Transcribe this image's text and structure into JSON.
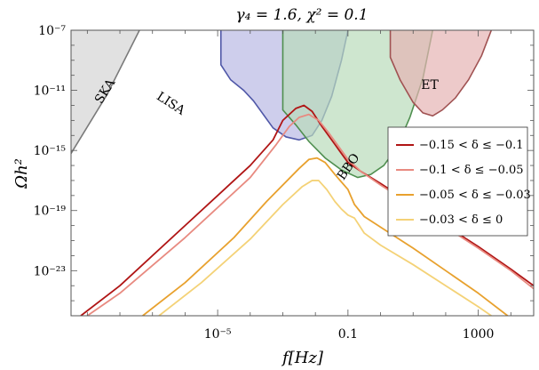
{
  "chart_data": {
    "type": "line",
    "title": "γ₄ = 1.6, χ² = 0.1",
    "xlabel": "f[Hz]",
    "ylabel": "Ωh²",
    "xscale": "log",
    "yscale": "log",
    "xlim_log10": [
      -9.5,
      4.7
    ],
    "ylim_log10": [
      -26,
      -7
    ],
    "x_ticks": [
      {
        "label": "10⁻⁵",
        "log10": -5
      },
      {
        "label": "0.1",
        "log10": -1
      },
      {
        "label": "1000",
        "log10": 3
      }
    ],
    "y_ticks": [
      {
        "label": "10⁻⁷",
        "log10": -7
      },
      {
        "label": "10⁻¹¹",
        "log10": -11
      },
      {
        "label": "10⁻¹⁵",
        "log10": -15
      },
      {
        "label": "10⁻¹⁹",
        "log10": -19
      },
      {
        "label": "10⁻²³",
        "log10": -23
      }
    ],
    "detectors": [
      {
        "label": "SKA",
        "fill": "#d4d4d4",
        "stroke": "#7a7a7a",
        "curve": [
          [
            -9.5,
            -15.2
          ],
          [
            -8.4,
            -11.3
          ],
          [
            -7.4,
            -7.0
          ]
        ]
      },
      {
        "label": "LISA",
        "fill": "#b9b9e4",
        "stroke": "#5058a8",
        "curve": [
          [
            -4.9,
            -7.0
          ],
          [
            -4.9,
            -9.3
          ],
          [
            -4.6,
            -10.3
          ],
          [
            -4.2,
            -11.0
          ],
          [
            -3.9,
            -11.7
          ],
          [
            -3.6,
            -12.6
          ],
          [
            -3.3,
            -13.5
          ],
          [
            -2.9,
            -14.1
          ],
          [
            -2.5,
            -14.3
          ],
          [
            -2.1,
            -14.0
          ],
          [
            -1.8,
            -13.0
          ],
          [
            -1.5,
            -11.4
          ],
          [
            -1.2,
            -9.0
          ],
          [
            -1.0,
            -7.0
          ]
        ]
      },
      {
        "label": "BBO",
        "fill": "#b9dcba",
        "stroke": "#4f8f4f",
        "curve": [
          [
            -3.0,
            -7.0
          ],
          [
            -3.0,
            -12.3
          ],
          [
            -2.6,
            -13.3
          ],
          [
            -2.2,
            -14.4
          ],
          [
            -1.7,
            -15.5
          ],
          [
            -1.2,
            -16.3
          ],
          [
            -0.7,
            -16.8
          ],
          [
            -0.3,
            -16.6
          ],
          [
            0.1,
            -16.0
          ],
          [
            0.5,
            -14.8
          ],
          [
            0.9,
            -12.8
          ],
          [
            1.3,
            -10.2
          ],
          [
            1.6,
            -7.0
          ]
        ]
      },
      {
        "label": "ET",
        "fill": "#e6b3b3",
        "stroke": "#a05252",
        "curve": [
          [
            0.3,
            -7.0
          ],
          [
            0.3,
            -8.8
          ],
          [
            0.6,
            -10.3
          ],
          [
            1.0,
            -11.8
          ],
          [
            1.3,
            -12.5
          ],
          [
            1.6,
            -12.7
          ],
          [
            1.9,
            -12.3
          ],
          [
            2.3,
            -11.5
          ],
          [
            2.7,
            -10.3
          ],
          [
            3.1,
            -8.7
          ],
          [
            3.4,
            -7.0
          ]
        ]
      }
    ],
    "series": [
      {
        "name": "−0.15 < δ ≤ −0.1",
        "color": "#b01515",
        "points": [
          [
            -9.2,
            -26
          ],
          [
            -8.0,
            -24.0
          ],
          [
            -6.0,
            -20.0
          ],
          [
            -4.0,
            -16.0
          ],
          [
            -3.3,
            -14.3
          ],
          [
            -3.0,
            -13.0
          ],
          [
            -2.6,
            -12.2
          ],
          [
            -2.35,
            -12.0
          ],
          [
            -2.1,
            -12.4
          ],
          [
            -1.8,
            -13.4
          ],
          [
            -1.4,
            -14.6
          ],
          [
            -1.0,
            -15.8
          ],
          [
            -0.6,
            -16.4
          ],
          [
            0.0,
            -17.2
          ],
          [
            1.0,
            -18.6
          ],
          [
            2.0,
            -20.0
          ],
          [
            3.0,
            -21.4
          ],
          [
            4.0,
            -22.9
          ],
          [
            4.7,
            -24.0
          ]
        ]
      },
      {
        "name": "−0.1 < δ ≤ −0.05",
        "color": "#e88a80",
        "points": [
          [
            -9.0,
            -26
          ],
          [
            -8.0,
            -24.5
          ],
          [
            -6.0,
            -20.8
          ],
          [
            -4.0,
            -16.8
          ],
          [
            -3.2,
            -14.6
          ],
          [
            -2.8,
            -13.4
          ],
          [
            -2.5,
            -12.8
          ],
          [
            -2.2,
            -12.6
          ],
          [
            -1.9,
            -13.0
          ],
          [
            -1.6,
            -13.8
          ],
          [
            -1.3,
            -14.7
          ],
          [
            -1.0,
            -15.6
          ],
          [
            -0.6,
            -16.4
          ],
          [
            0.0,
            -17.3
          ],
          [
            1.0,
            -18.7
          ],
          [
            2.0,
            -20.1
          ],
          [
            3.0,
            -21.5
          ],
          [
            4.0,
            -23.0
          ],
          [
            4.7,
            -24.2
          ]
        ]
      },
      {
        "name": "−0.05 < δ ≤ −0.03",
        "color": "#e8a12e",
        "points": [
          [
            -7.3,
            -26
          ],
          [
            -6.0,
            -23.8
          ],
          [
            -4.5,
            -20.8
          ],
          [
            -3.5,
            -18.4
          ],
          [
            -2.5,
            -16.2
          ],
          [
            -2.2,
            -15.6
          ],
          [
            -1.95,
            -15.5
          ],
          [
            -1.7,
            -15.8
          ],
          [
            -1.4,
            -16.6
          ],
          [
            -1.2,
            -17.1
          ],
          [
            -1.0,
            -17.6
          ],
          [
            -0.8,
            -18.6
          ],
          [
            -0.5,
            -19.4
          ],
          [
            0.0,
            -20.1
          ],
          [
            1.0,
            -21.5
          ],
          [
            2.0,
            -23.0
          ],
          [
            3.0,
            -24.5
          ],
          [
            3.9,
            -26
          ]
        ]
      },
      {
        "name": "−0.03 < δ ≤ 0",
        "color": "#f4d277",
        "points": [
          [
            -6.8,
            -26
          ],
          [
            -5.5,
            -23.8
          ],
          [
            -4.0,
            -20.9
          ],
          [
            -3.0,
            -18.6
          ],
          [
            -2.4,
            -17.4
          ],
          [
            -2.1,
            -17.0
          ],
          [
            -1.9,
            -17.0
          ],
          [
            -1.65,
            -17.6
          ],
          [
            -1.4,
            -18.4
          ],
          [
            -1.2,
            -18.9
          ],
          [
            -1.0,
            -19.3
          ],
          [
            -0.8,
            -19.5
          ],
          [
            -0.5,
            -20.5
          ],
          [
            0.0,
            -21.3
          ],
          [
            1.0,
            -22.6
          ],
          [
            2.0,
            -24.0
          ],
          [
            3.0,
            -25.4
          ],
          [
            3.4,
            -26
          ]
        ]
      }
    ],
    "legend_position": "right"
  }
}
